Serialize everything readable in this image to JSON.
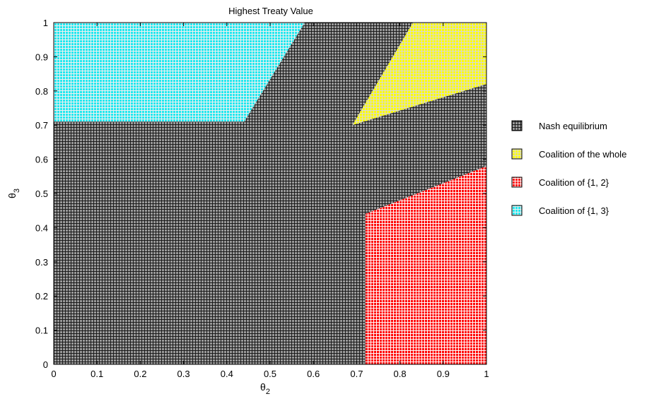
{
  "chart_data": {
    "type": "area",
    "title": "Highest Treaty Value",
    "xlabel": {
      "main": "θ",
      "sub": "2"
    },
    "ylabel": {
      "main": "θ",
      "sub": "3"
    },
    "xlim": [
      0,
      1
    ],
    "ylim": [
      0,
      1
    ],
    "xticks": [
      0,
      0.1,
      0.2,
      0.3,
      0.4,
      0.5,
      0.6,
      0.7,
      0.8,
      0.9,
      1
    ],
    "yticks": [
      0,
      0.1,
      0.2,
      0.3,
      0.4,
      0.5,
      0.6,
      0.7,
      0.8,
      0.9,
      1
    ],
    "xtick_labels": [
      "0",
      "0.1",
      "0.2",
      "0.3",
      "0.4",
      "0.5",
      "0.6",
      "0.7",
      "0.8",
      "0.9",
      "1"
    ],
    "ytick_labels": [
      "0",
      "0.1",
      "0.2",
      "0.3",
      "0.4",
      "0.5",
      "0.6",
      "0.7",
      "0.8",
      "0.9",
      "1"
    ],
    "grid": false,
    "legend_position": "right",
    "regions": [
      {
        "id": "nash",
        "name": "Nash equilibrium",
        "fill": "#9a9a9a",
        "line": "#1a1a1a",
        "polygon": [
          [
            0,
            0
          ],
          [
            1,
            0
          ],
          [
            1,
            1
          ],
          [
            0,
            1
          ]
        ]
      },
      {
        "id": "whole",
        "name": "Coalition of the whole",
        "fill": "#ffff00",
        "line": "#d8d8d8",
        "polygon": [
          [
            0.69,
            0.7
          ],
          [
            0.83,
            1.0
          ],
          [
            1.0,
            1.0
          ],
          [
            1.0,
            0.82
          ]
        ]
      },
      {
        "id": "c12",
        "name": "Coalition of {1, 2}",
        "fill": "#ff0000",
        "line": "#ffffff",
        "polygon": [
          [
            0.72,
            0.0
          ],
          [
            1.0,
            0.0
          ],
          [
            1.0,
            0.58
          ],
          [
            0.72,
            0.44
          ]
        ]
      },
      {
        "id": "c13",
        "name": "Coalition of {1, 3}",
        "fill": "#22e8ef",
        "line": "#f0f0f0",
        "polygon": [
          [
            0.0,
            0.71
          ],
          [
            0.44,
            0.71
          ],
          [
            0.58,
            1.0
          ],
          [
            0.0,
            1.0
          ]
        ]
      }
    ]
  }
}
